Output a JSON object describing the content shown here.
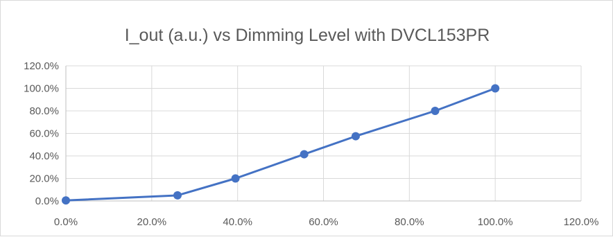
{
  "chart_data": {
    "type": "scatter",
    "title": "I_out (a.u.) vs Dimming Level with DVCL153PR",
    "xlabel": "",
    "ylabel": "",
    "xlim": [
      0,
      120
    ],
    "ylim": [
      0,
      120
    ],
    "x_ticks": [
      "0.0%",
      "20.0%",
      "40.0%",
      "60.0%",
      "80.0%",
      "100.0%",
      "120.0%"
    ],
    "y_ticks": [
      "0.0%",
      "20.0%",
      "40.0%",
      "60.0%",
      "80.0%",
      "100.0%",
      "120.0%"
    ],
    "grid": true,
    "legend": "none",
    "series": [
      {
        "x": [
          0,
          26,
          39.5,
          55.5,
          67.5,
          86,
          100
        ],
        "y": [
          0.5,
          5,
          20,
          41.5,
          57.5,
          80,
          100
        ],
        "color": "#4472c4",
        "lines": true,
        "markers": true
      }
    ]
  }
}
